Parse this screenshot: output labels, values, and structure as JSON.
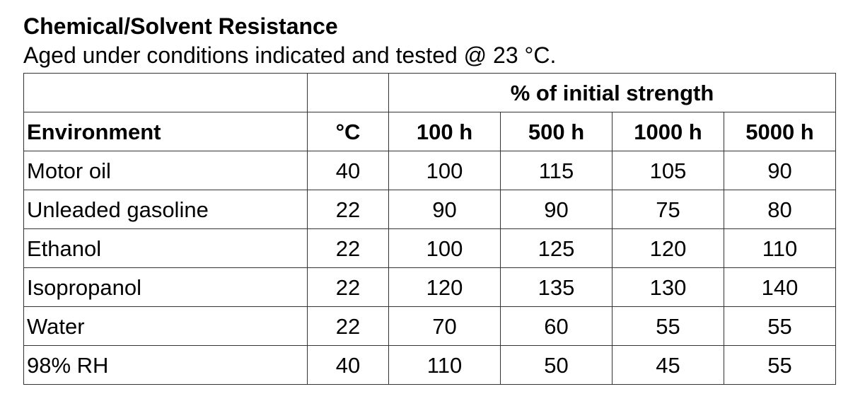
{
  "header": {
    "title": "Chemical/Solvent Resistance",
    "subtitle": "Aged under conditions indicated and tested @ 23 °C."
  },
  "table": {
    "group_header": "% of initial strength",
    "columns": [
      "Environment",
      "°C",
      "100 h",
      "500 h",
      "1000 h",
      "5000 h"
    ],
    "rows": [
      [
        "Motor oil",
        40,
        100,
        115,
        105,
        90
      ],
      [
        "Unleaded gasoline",
        22,
        90,
        90,
        75,
        80
      ],
      [
        "Ethanol",
        22,
        100,
        125,
        120,
        110
      ],
      [
        "Isopropanol",
        22,
        120,
        135,
        130,
        140
      ],
      [
        "Water",
        22,
        70,
        60,
        55,
        55
      ],
      [
        "98% RH",
        40,
        110,
        50,
        45,
        55
      ]
    ]
  }
}
